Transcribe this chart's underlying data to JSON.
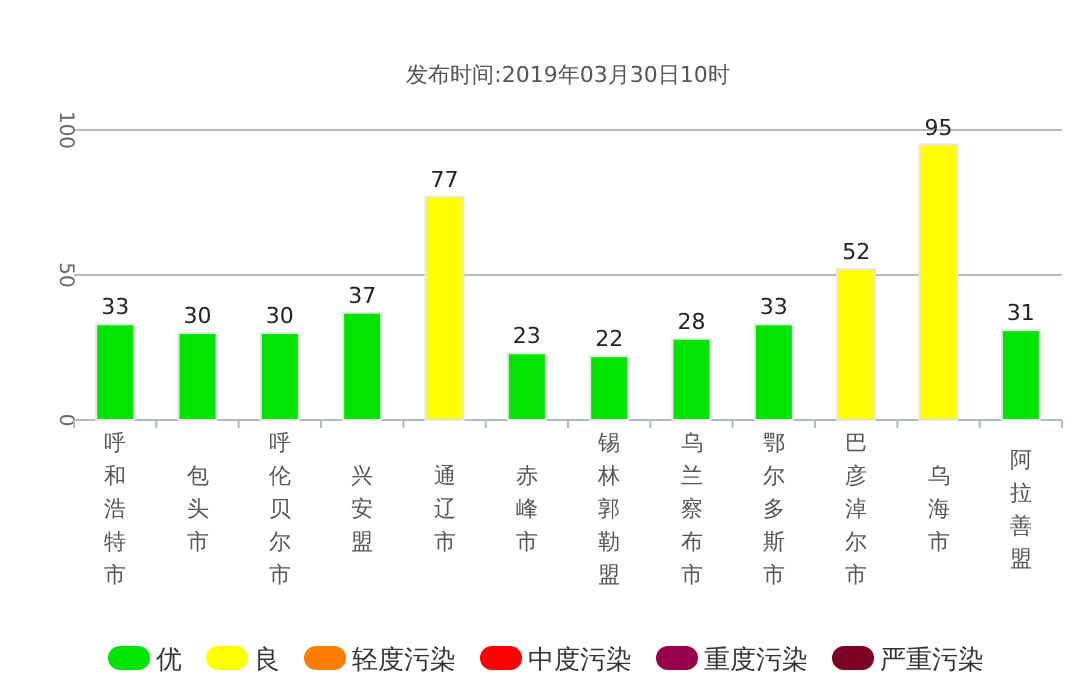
{
  "chart_data": {
    "type": "bar",
    "title": "发布时间:2019年03月30日10时",
    "categories": [
      "呼和浩特市",
      "包头市",
      "呼伦贝尔市",
      "兴安盟",
      "通辽市",
      "赤峰市",
      "锡林郭勒盟",
      "乌兰察布市",
      "鄂尔多斯市",
      "巴彦淖尔市",
      "乌海市",
      "阿拉善盟"
    ],
    "stacked": true,
    "series": [
      {
        "name": "优",
        "color": "#00e400",
        "values": [
          33,
          30,
          30,
          37,
          null,
          23,
          22,
          28,
          33,
          null,
          null,
          31
        ]
      },
      {
        "name": "良",
        "color": "#ffff00",
        "values": [
          null,
          null,
          null,
          null,
          77,
          null,
          null,
          null,
          null,
          52,
          95,
          null
        ]
      },
      {
        "name": "轻度污染",
        "color": "#ff7e00",
        "values": [
          null,
          null,
          null,
          null,
          null,
          null,
          null,
          null,
          null,
          null,
          null,
          null
        ]
      },
      {
        "name": "中度污染",
        "color": "#ff0000",
        "values": [
          null,
          null,
          null,
          null,
          null,
          null,
          null,
          null,
          null,
          null,
          null,
          null
        ]
      },
      {
        "name": "重度污染",
        "color": "#99004c",
        "values": [
          null,
          null,
          null,
          null,
          null,
          null,
          null,
          null,
          null,
          null,
          null,
          null
        ]
      },
      {
        "name": "严重污染",
        "color": "#7e0023",
        "values": [
          null,
          null,
          null,
          null,
          null,
          null,
          null,
          null,
          null,
          null,
          null,
          null
        ]
      }
    ],
    "ylim": [
      0,
      100
    ],
    "yticks": [
      0,
      50,
      100
    ],
    "grid": "y",
    "data_labels": true,
    "legend": "bottom"
  }
}
